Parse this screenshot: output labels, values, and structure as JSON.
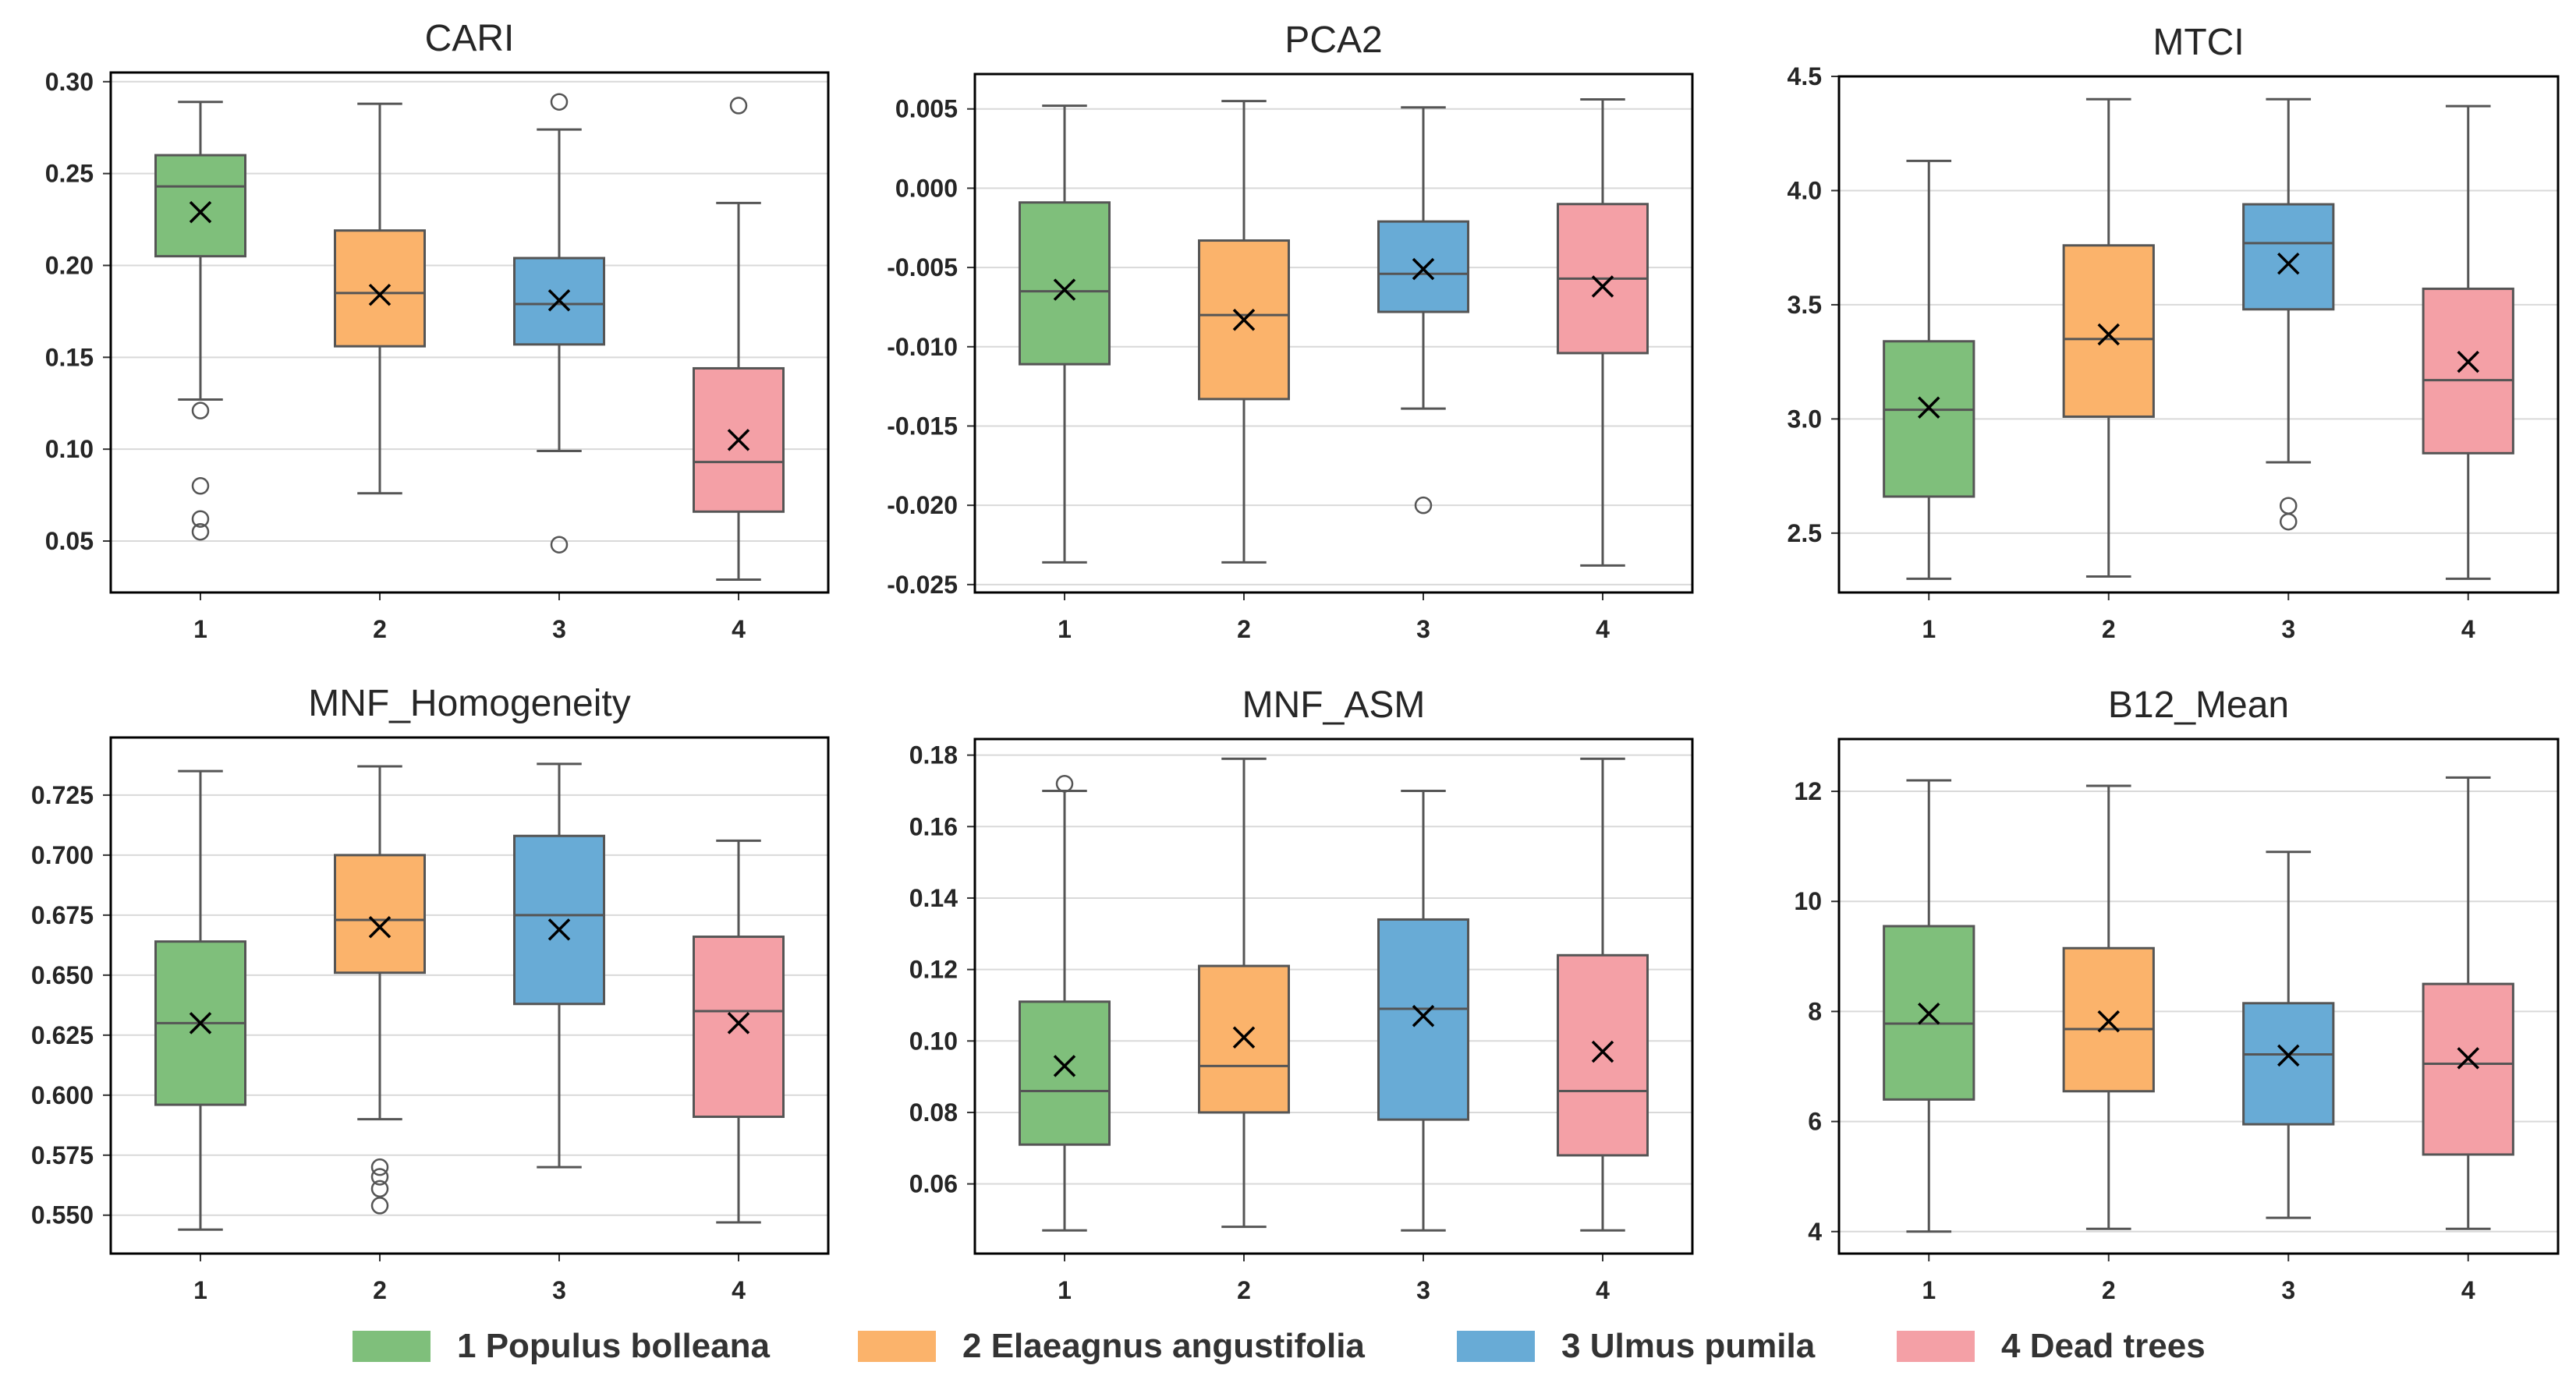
{
  "colors": {
    "box_fill": [
      "#7fbf7b",
      "#fbb36b",
      "#68abd6",
      "#f4a0a6"
    ],
    "box_edge": "#555555",
    "grid": "#d9d9d9",
    "frame": "#000000"
  },
  "legend": [
    {
      "label": "1 Populus bolleana",
      "color": "#7fbf7b"
    },
    {
      "label": "2 Elaeagnus angustifolia",
      "color": "#fbb36b"
    },
    {
      "label": "3 Ulmus pumila",
      "color": "#68abd6"
    },
    {
      "label": "4 Dead trees",
      "color": "#f4a0a6"
    }
  ],
  "chart_data": [
    {
      "type": "box",
      "title": "CARI",
      "categories": [
        "1",
        "2",
        "3",
        "4"
      ],
      "ylim": [
        0.022,
        0.305
      ],
      "yticks": [
        0.05,
        0.1,
        0.15,
        0.2,
        0.25,
        0.3
      ],
      "ytick_labels": [
        "0.05",
        "0.10",
        "0.15",
        "0.20",
        "0.25",
        "0.30"
      ],
      "boxes": [
        {
          "whisker_low": 0.127,
          "q1": 0.205,
          "median": 0.243,
          "q3": 0.26,
          "whisker_high": 0.289,
          "mean": 0.229,
          "outliers": [
            0.121,
            0.08,
            0.062,
            0.055
          ]
        },
        {
          "whisker_low": 0.076,
          "q1": 0.156,
          "median": 0.185,
          "q3": 0.219,
          "whisker_high": 0.288,
          "mean": 0.184,
          "outliers": []
        },
        {
          "whisker_low": 0.099,
          "q1": 0.157,
          "median": 0.179,
          "q3": 0.204,
          "whisker_high": 0.274,
          "mean": 0.181,
          "outliers": [
            0.289,
            0.048
          ]
        },
        {
          "whisker_low": 0.029,
          "q1": 0.066,
          "median": 0.093,
          "q3": 0.144,
          "whisker_high": 0.234,
          "mean": 0.105,
          "outliers": [
            0.287
          ]
        }
      ]
    },
    {
      "type": "box",
      "title": "PCA2",
      "categories": [
        "1",
        "2",
        "3",
        "4"
      ],
      "ylim": [
        -0.0255,
        0.0072
      ],
      "yticks": [
        0.005,
        0.0,
        -0.005,
        -0.01,
        -0.015,
        -0.02,
        -0.025
      ],
      "ytick_labels": [
        "0.005",
        "0.000",
        "-0.005",
        "-0.010",
        "-0.015",
        "-0.020",
        "-0.025"
      ],
      "boxes": [
        {
          "whisker_low": -0.0236,
          "q1": -0.0111,
          "median": -0.0065,
          "q3": -0.0009,
          "whisker_high": 0.0052,
          "mean": -0.0064,
          "outliers": []
        },
        {
          "whisker_low": -0.0236,
          "q1": -0.0133,
          "median": -0.008,
          "q3": -0.0033,
          "whisker_high": 0.0055,
          "mean": -0.0083,
          "outliers": []
        },
        {
          "whisker_low": -0.0139,
          "q1": -0.0078,
          "median": -0.0054,
          "q3": -0.0021,
          "whisker_high": 0.0051,
          "mean": -0.0051,
          "outliers": [
            -0.02
          ]
        },
        {
          "whisker_low": -0.0238,
          "q1": -0.0104,
          "median": -0.0057,
          "q3": -0.001,
          "whisker_high": 0.0056,
          "mean": -0.0062,
          "outliers": []
        }
      ]
    },
    {
      "type": "box",
      "title": "MTCI",
      "categories": [
        "1",
        "2",
        "3",
        "4"
      ],
      "ylim": [
        2.24,
        4.5
      ],
      "yticks": [
        2.5,
        3.0,
        3.5,
        4.0,
        4.5
      ],
      "ytick_labels": [
        "2.5",
        "3.0",
        "3.5",
        "4.0",
        "4.5"
      ],
      "boxes": [
        {
          "whisker_low": 2.3,
          "q1": 2.66,
          "median": 3.04,
          "q3": 3.34,
          "whisker_high": 4.13,
          "mean": 3.05,
          "outliers": []
        },
        {
          "whisker_low": 2.31,
          "q1": 3.01,
          "median": 3.35,
          "q3": 3.76,
          "whisker_high": 4.4,
          "mean": 3.37,
          "outliers": []
        },
        {
          "whisker_low": 2.81,
          "q1": 3.48,
          "median": 3.77,
          "q3": 3.94,
          "whisker_high": 4.4,
          "mean": 3.68,
          "outliers": [
            2.62,
            2.55
          ]
        },
        {
          "whisker_low": 2.3,
          "q1": 2.85,
          "median": 3.17,
          "q3": 3.57,
          "whisker_high": 4.37,
          "mean": 3.25,
          "outliers": []
        }
      ]
    },
    {
      "type": "box",
      "title": "MNF_Homogeneity",
      "categories": [
        "1",
        "2",
        "3",
        "4"
      ],
      "ylim": [
        0.534,
        0.749
      ],
      "yticks": [
        0.55,
        0.575,
        0.6,
        0.625,
        0.65,
        0.675,
        0.7,
        0.725
      ],
      "ytick_labels": [
        "0.550",
        "0.575",
        "0.600",
        "0.625",
        "0.650",
        "0.675",
        "0.700",
        "0.725"
      ],
      "boxes": [
        {
          "whisker_low": 0.544,
          "q1": 0.596,
          "median": 0.63,
          "q3": 0.664,
          "whisker_high": 0.735,
          "mean": 0.63,
          "outliers": []
        },
        {
          "whisker_low": 0.59,
          "q1": 0.651,
          "median": 0.673,
          "q3": 0.7,
          "whisker_high": 0.737,
          "mean": 0.67,
          "outliers": [
            0.57,
            0.566,
            0.561,
            0.554
          ]
        },
        {
          "whisker_low": 0.57,
          "q1": 0.638,
          "median": 0.675,
          "q3": 0.708,
          "whisker_high": 0.738,
          "mean": 0.669,
          "outliers": []
        },
        {
          "whisker_low": 0.547,
          "q1": 0.591,
          "median": 0.635,
          "q3": 0.666,
          "whisker_high": 0.706,
          "mean": 0.63,
          "outliers": []
        }
      ]
    },
    {
      "type": "box",
      "title": "MNF_ASM",
      "categories": [
        "1",
        "2",
        "3",
        "4"
      ],
      "ylim": [
        0.0405,
        0.1845
      ],
      "yticks": [
        0.06,
        0.08,
        0.1,
        0.12,
        0.14,
        0.16,
        0.18
      ],
      "ytick_labels": [
        "0.06",
        "0.08",
        "0.10",
        "0.12",
        "0.14",
        "0.16",
        "0.18"
      ],
      "boxes": [
        {
          "whisker_low": 0.047,
          "q1": 0.071,
          "median": 0.086,
          "q3": 0.111,
          "whisker_high": 0.17,
          "mean": 0.093,
          "outliers": [
            0.172
          ]
        },
        {
          "whisker_low": 0.048,
          "q1": 0.08,
          "median": 0.093,
          "q3": 0.121,
          "whisker_high": 0.179,
          "mean": 0.101,
          "outliers": []
        },
        {
          "whisker_low": 0.047,
          "q1": 0.078,
          "median": 0.109,
          "q3": 0.134,
          "whisker_high": 0.17,
          "mean": 0.107,
          "outliers": []
        },
        {
          "whisker_low": 0.047,
          "q1": 0.068,
          "median": 0.086,
          "q3": 0.124,
          "whisker_high": 0.179,
          "mean": 0.097,
          "outliers": []
        }
      ]
    },
    {
      "type": "box",
      "title": "B12_Mean",
      "categories": [
        "1",
        "2",
        "3",
        "4"
      ],
      "ylim": [
        3.6,
        12.95
      ],
      "yticks": [
        4,
        6,
        8,
        10,
        12
      ],
      "ytick_labels": [
        "4",
        "6",
        "8",
        "10",
        "12"
      ],
      "boxes": [
        {
          "whisker_low": 4.0,
          "q1": 6.4,
          "median": 7.78,
          "q3": 9.55,
          "whisker_high": 12.2,
          "mean": 7.96,
          "outliers": []
        },
        {
          "whisker_low": 4.05,
          "q1": 6.55,
          "median": 7.68,
          "q3": 9.15,
          "whisker_high": 12.1,
          "mean": 7.82,
          "outliers": []
        },
        {
          "whisker_low": 4.25,
          "q1": 5.95,
          "median": 7.22,
          "q3": 8.15,
          "whisker_high": 10.9,
          "mean": 7.2,
          "outliers": []
        },
        {
          "whisker_low": 4.05,
          "q1": 5.4,
          "median": 7.05,
          "q3": 8.5,
          "whisker_high": 12.25,
          "mean": 7.15,
          "outliers": []
        }
      ]
    }
  ]
}
